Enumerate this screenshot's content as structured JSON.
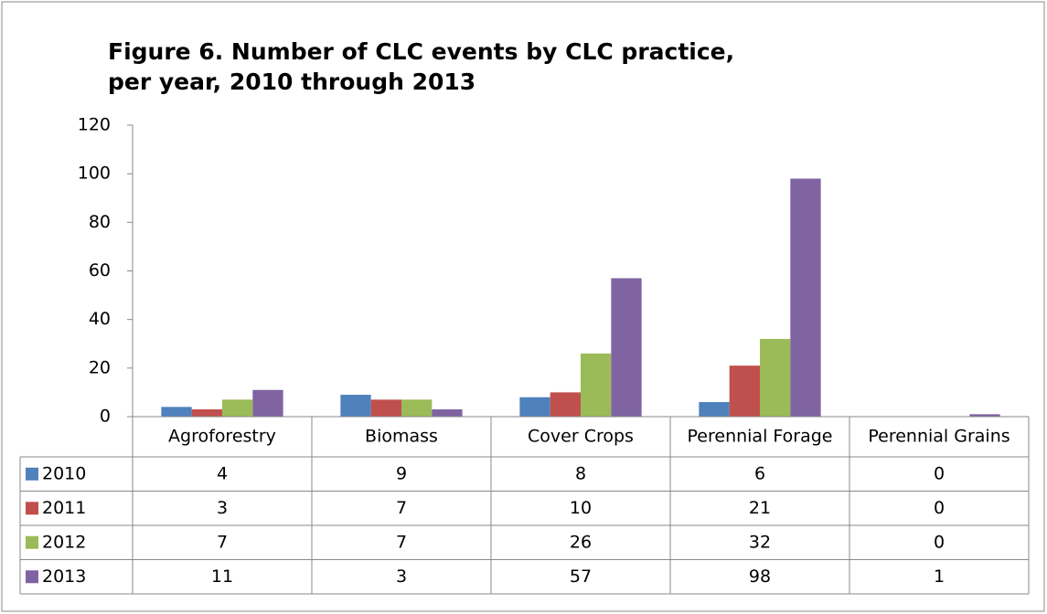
{
  "chart_data": {
    "type": "bar",
    "title": "Figure 6. Number of CLC events by CLC practice, per year, 2010 through 2013",
    "categories": [
      "Agroforestry",
      "Biomass",
      "Cover Crops",
      "Perennial Forage",
      "Perennial Grains"
    ],
    "series": [
      {
        "name": "2010",
        "color": "#4f81bd",
        "values": [
          4,
          9,
          8,
          6,
          0
        ]
      },
      {
        "name": "2011",
        "color": "#c0504d",
        "values": [
          3,
          7,
          10,
          21,
          0
        ]
      },
      {
        "name": "2012",
        "color": "#9bbb59",
        "values": [
          7,
          7,
          26,
          32,
          0
        ]
      },
      {
        "name": "2013",
        "color": "#8064a2",
        "values": [
          11,
          3,
          57,
          98,
          1
        ]
      }
    ],
    "ylim": [
      0,
      120
    ],
    "yticks": [
      0,
      20,
      40,
      60,
      80,
      100,
      120
    ],
    "grid": false
  }
}
